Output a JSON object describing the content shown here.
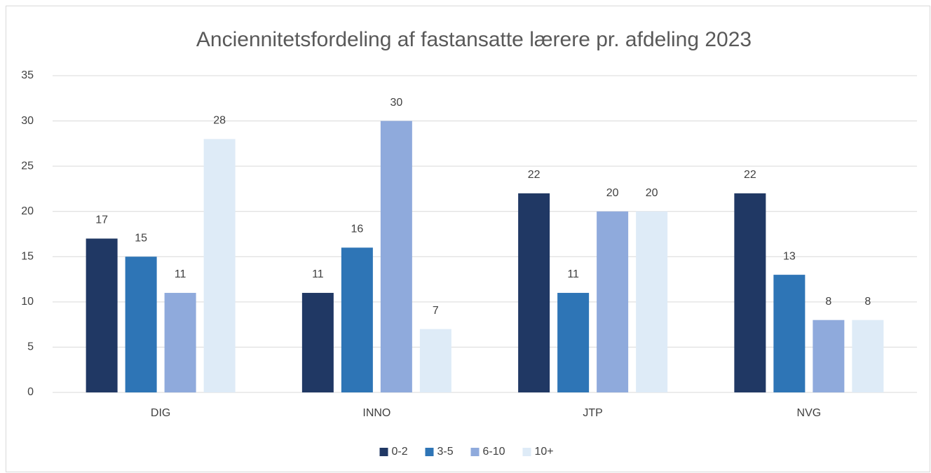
{
  "chart_data": {
    "type": "bar",
    "title": "Anciennitetsfordeling af fastansatte lærere pr. afdeling 2023",
    "categories": [
      "DIG",
      "INNO",
      "JTP",
      "NVG"
    ],
    "series": [
      {
        "name": "0-2",
        "color": "#203864",
        "values": [
          17,
          11,
          22,
          22
        ]
      },
      {
        "name": "3-5",
        "color": "#2e75b6",
        "values": [
          15,
          16,
          11,
          13
        ]
      },
      {
        "name": "6-10",
        "color": "#8faadc",
        "values": [
          11,
          30,
          20,
          8
        ]
      },
      {
        "name": "10+",
        "color": "#deebf7",
        "values": [
          28,
          7,
          20,
          8
        ]
      }
    ],
    "ylim": [
      0,
      35
    ],
    "yticks": [
      0,
      5,
      10,
      15,
      20,
      25,
      30,
      35
    ],
    "grid": true,
    "legend": "bottom"
  }
}
